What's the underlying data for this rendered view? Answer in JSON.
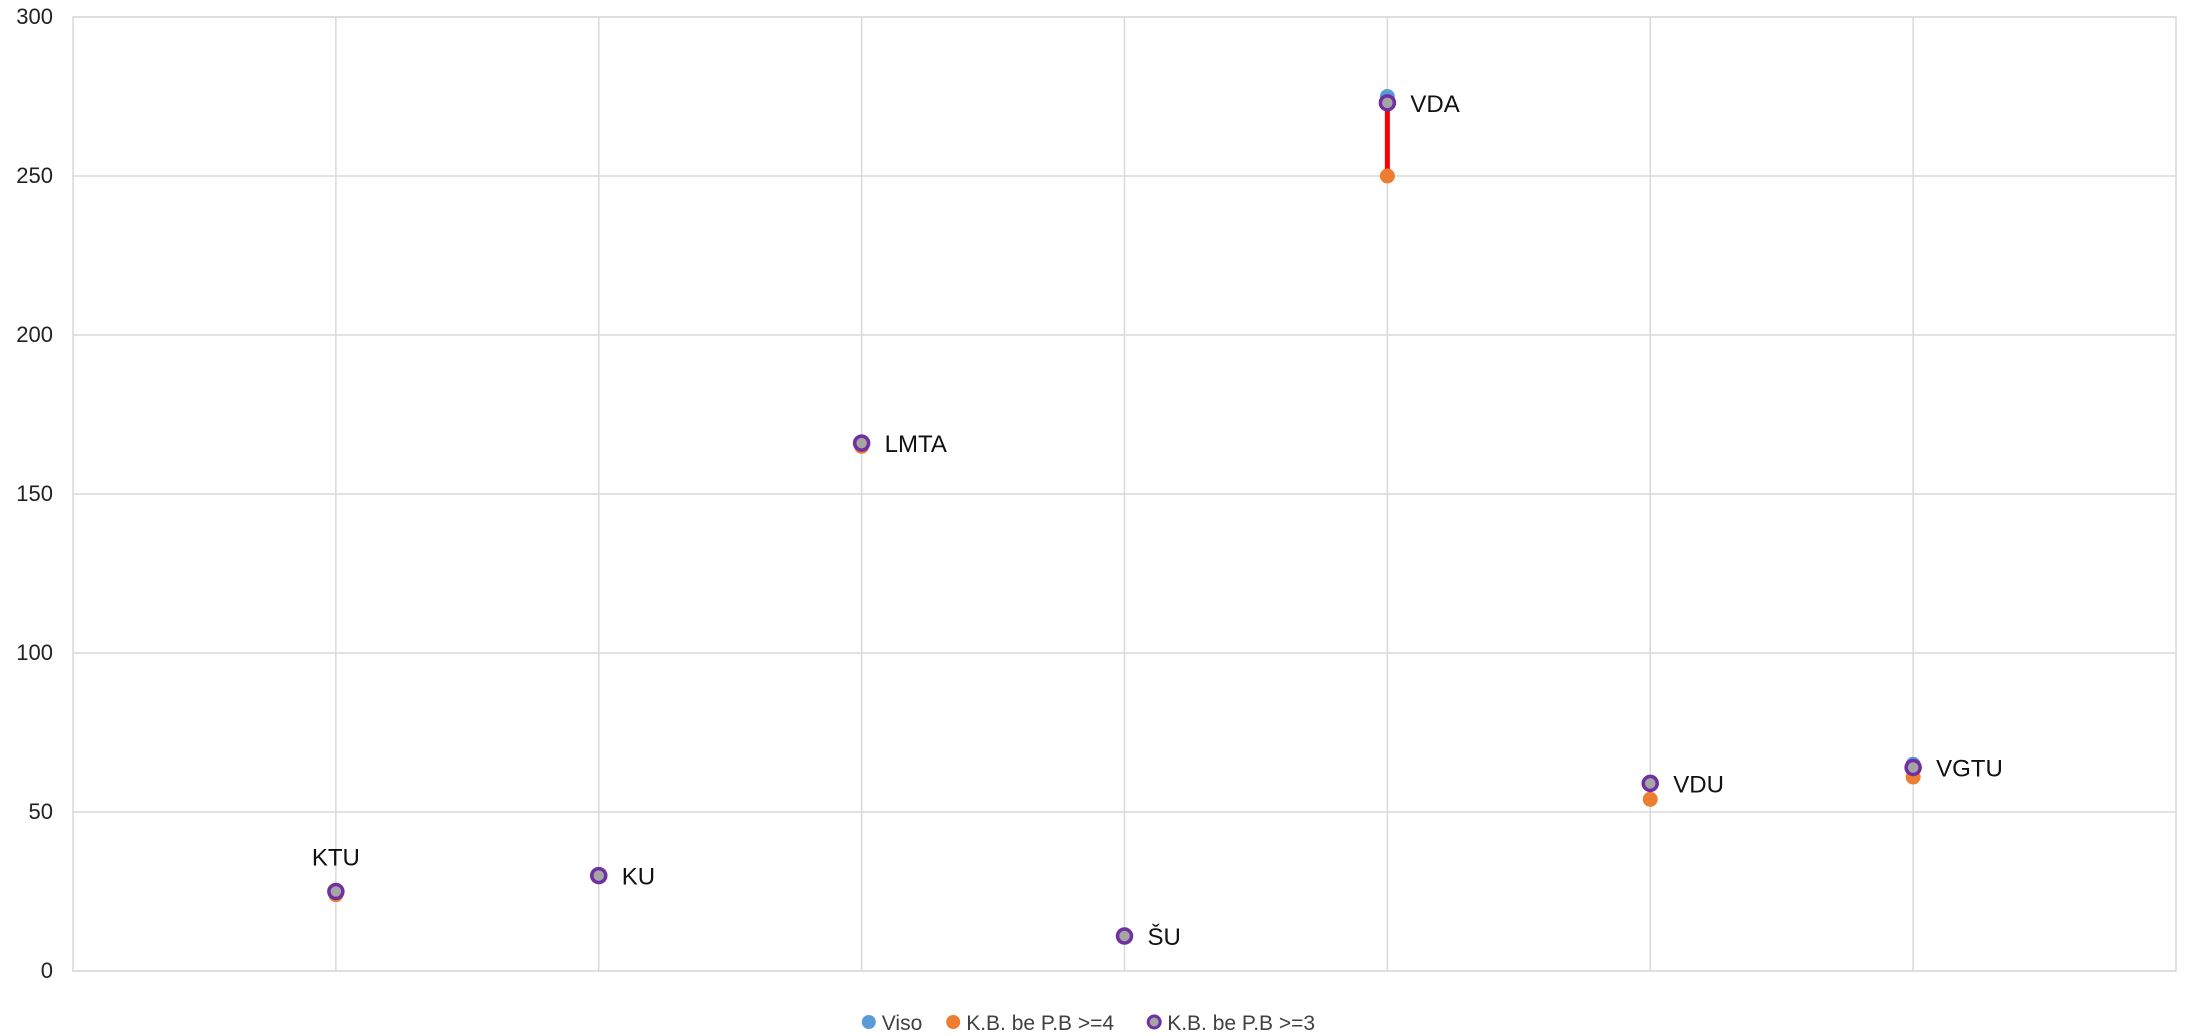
{
  "chart_data": {
    "type": "scatter",
    "title": "",
    "xlabel": "",
    "ylabel": "",
    "categories": [
      "KTU",
      "KU",
      "LMTA",
      "ŠU",
      "VDA",
      "VDU",
      "VGTU"
    ],
    "ylim": [
      0,
      300
    ],
    "yticks": [
      "0",
      "50",
      "100",
      "150",
      "200",
      "250",
      "300"
    ],
    "grid": true,
    "legend_position": "bottom",
    "series": [
      {
        "name": "Viso",
        "color": "#5B9BD5",
        "values": [
          25,
          30,
          166,
          11,
          275,
          59,
          65
        ]
      },
      {
        "name": "K.B. be P.B >=4",
        "color": "#ED7D31",
        "values": [
          24,
          30,
          165,
          11,
          250,
          54,
          61
        ]
      },
      {
        "name": "K.B. be P.B >=3",
        "color": "#7030A0",
        "fill": "#A5A5A5",
        "values": [
          25,
          30,
          166,
          11,
          273,
          59,
          64
        ]
      }
    ],
    "point_labels": [
      "KTU",
      "KU",
      "LMTA",
      "ŠU",
      "VDA",
      "VDU",
      "VGTU"
    ],
    "highlight": {
      "category": "VDA",
      "from": 250,
      "to": 273,
      "color": "#FF0000"
    }
  }
}
